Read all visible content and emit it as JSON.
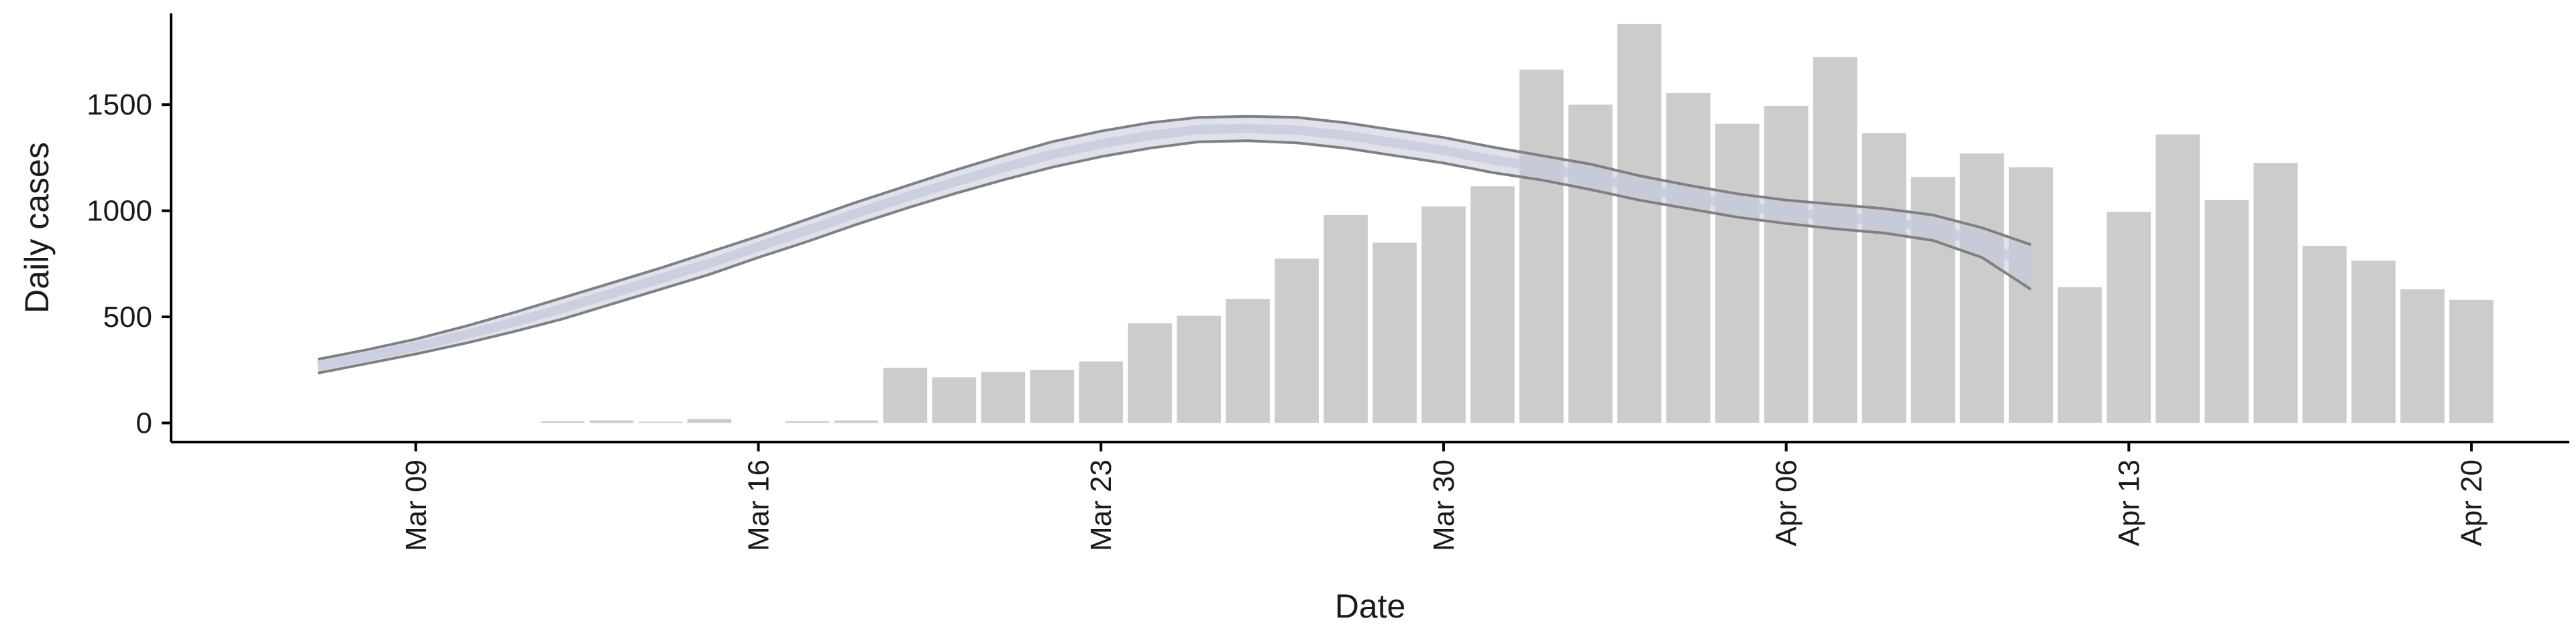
{
  "chart_data": {
    "type": "bar",
    "xlabel": "Date",
    "ylabel": "Daily cases",
    "x_ticks": [
      "Mar 09",
      "Mar 16",
      "Mar 23",
      "Mar 30",
      "Apr 06",
      "Apr 13",
      "Apr 20"
    ],
    "y_ticks": [
      "0",
      "500",
      "1000",
      "1500"
    ],
    "ylim": [
      -90,
      1930
    ],
    "xlim": [
      "2020-03-04",
      "2020-04-22"
    ],
    "grid": false,
    "colors": {
      "bars": "#cccccc",
      "ribbon_fill": "#c5cadc",
      "band_line": "#808080",
      "axis": "#000000"
    },
    "bars": {
      "dates": [
        "2020-03-12",
        "2020-03-13",
        "2020-03-14",
        "2020-03-15",
        "2020-03-17",
        "2020-03-18",
        "2020-03-19",
        "2020-03-20",
        "2020-03-21",
        "2020-03-22",
        "2020-03-23",
        "2020-03-24",
        "2020-03-25",
        "2020-03-26",
        "2020-03-27",
        "2020-03-28",
        "2020-03-29",
        "2020-03-30",
        "2020-03-31",
        "2020-04-01",
        "2020-04-02",
        "2020-04-03",
        "2020-04-04",
        "2020-04-05",
        "2020-04-06",
        "2020-04-07",
        "2020-04-08",
        "2020-04-09",
        "2020-04-10",
        "2020-04-11",
        "2020-04-12",
        "2020-04-13",
        "2020-04-14",
        "2020-04-15",
        "2020-04-16",
        "2020-04-17",
        "2020-04-18",
        "2020-04-19",
        "2020-04-20"
      ],
      "values": [
        8,
        12,
        6,
        18,
        8,
        12,
        260,
        215,
        240,
        250,
        290,
        470,
        505,
        585,
        775,
        980,
        850,
        1020,
        1115,
        1665,
        1500,
        1880,
        1555,
        1410,
        1495,
        1725,
        1365,
        1160,
        1270,
        1205,
        640,
        995,
        1360,
        1050,
        1225,
        835,
        765,
        630,
        580
      ]
    },
    "nowcast": {
      "dates": [
        "2020-03-07",
        "2020-03-08",
        "2020-03-09",
        "2020-03-10",
        "2020-03-11",
        "2020-03-12",
        "2020-03-13",
        "2020-03-14",
        "2020-03-15",
        "2020-03-16",
        "2020-03-17",
        "2020-03-18",
        "2020-03-19",
        "2020-03-20",
        "2020-03-21",
        "2020-03-22",
        "2020-03-23",
        "2020-03-24",
        "2020-03-25",
        "2020-03-26",
        "2020-03-27",
        "2020-03-28",
        "2020-03-29",
        "2020-03-30",
        "2020-03-31",
        "2020-04-01",
        "2020-04-02",
        "2020-04-03",
        "2020-04-04",
        "2020-04-05",
        "2020-04-06",
        "2020-04-07",
        "2020-04-08",
        "2020-04-09",
        "2020-04-10",
        "2020-04-11"
      ],
      "upper": [
        300,
        345,
        395,
        455,
        520,
        590,
        660,
        730,
        805,
        880,
        960,
        1040,
        1115,
        1190,
        1260,
        1325,
        1375,
        1415,
        1440,
        1445,
        1440,
        1415,
        1380,
        1345,
        1300,
        1260,
        1220,
        1165,
        1120,
        1080,
        1050,
        1030,
        1010,
        980,
        920,
        840
      ],
      "lower": [
        235,
        280,
        325,
        375,
        430,
        490,
        560,
        630,
        700,
        780,
        855,
        935,
        1010,
        1080,
        1145,
        1205,
        1255,
        1295,
        1325,
        1330,
        1320,
        1295,
        1260,
        1225,
        1180,
        1145,
        1100,
        1050,
        1010,
        970,
        940,
        915,
        895,
        860,
        780,
        630
      ],
      "median": [
        268,
        312,
        360,
        415,
        475,
        540,
        610,
        680,
        752,
        830,
        908,
        988,
        1063,
        1135,
        1203,
        1265,
        1315,
        1355,
        1383,
        1388,
        1380,
        1355,
        1320,
        1285,
        1240,
        1203,
        1160,
        1108,
        1065,
        1025,
        995,
        972,
        952,
        920,
        850,
        735
      ]
    }
  }
}
